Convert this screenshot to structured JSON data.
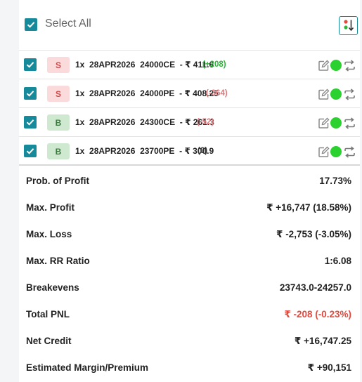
{
  "header": {
    "select_all_label": "Select All",
    "select_all_checked": true
  },
  "legs": [
    {
      "side": "S",
      "type": "sell",
      "text": "1x  28APR2026  24000CE  - ₹ 411.6",
      "pnl": "(+208)",
      "pnl_state": "pos"
    },
    {
      "side": "S",
      "type": "sell",
      "text": "1x  28APR2026  24000PE  - ₹ 408.25",
      "pnl": "(-364)",
      "pnl_state": "neg"
    },
    {
      "side": "B",
      "type": "buy",
      "text": "1x  28APR2026  24300CE  - ₹ 261.3",
      "pnl": "(-52)",
      "pnl_state": "neg"
    },
    {
      "side": "B",
      "type": "buy",
      "text": "1x  28APR2026  23700PE  - ₹ 300.9",
      "pnl": "(0)",
      "pnl_state": "zero"
    }
  ],
  "stats": [
    {
      "label": "Prob. of Profit",
      "value": "17.73%"
    },
    {
      "label": "Max. Profit",
      "value": "₹ +16,747 (18.58%)"
    },
    {
      "label": "Max. Loss",
      "value": "₹ -2,753 (-3.05%)"
    },
    {
      "label": "Max. RR Ratio",
      "value": "1:6.08"
    },
    {
      "label": "Breakevens",
      "value": "23743.0-24257.0"
    },
    {
      "label": "Total PNL",
      "value": "₹ -208 (-0.23%)",
      "highlight": "red"
    },
    {
      "label": "Net Credit",
      "value": "₹ +16,747.25"
    },
    {
      "label": "Estimated Margin/Premium",
      "value": "₹ +90,151"
    }
  ],
  "colors": {
    "checkbox": "#16899a",
    "live_dot": "#2bd12f",
    "profit": "#2db53a",
    "loss": "#e0777a",
    "pnl_negative": "#e04a3f"
  },
  "icons": [
    "check-icon",
    "sort-icon",
    "edit-icon",
    "status-dot-icon",
    "swap-icon"
  ]
}
